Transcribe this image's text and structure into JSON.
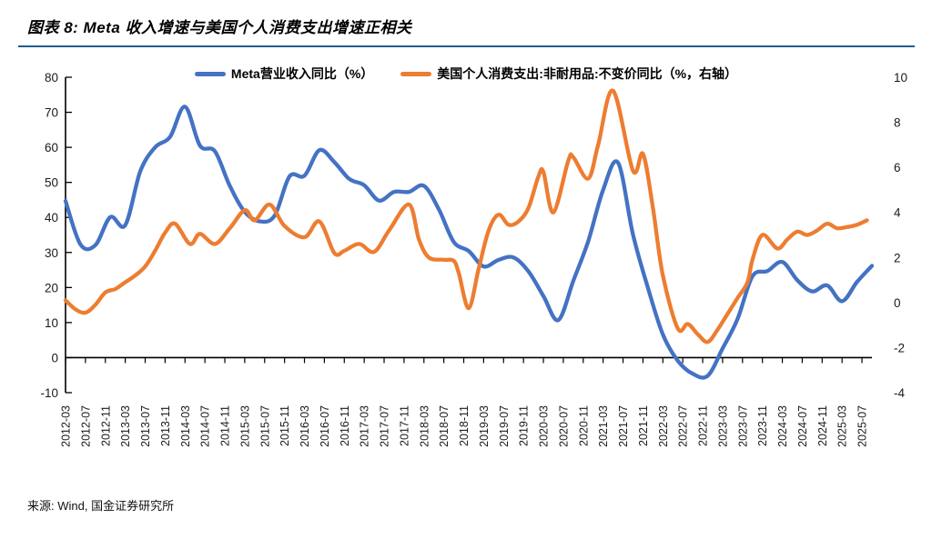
{
  "header": {
    "title": "图表 8: Meta 收入增速与美国个人消费支出增速正相关"
  },
  "footer": {
    "source": "来源: Wind, 国金证券研究所"
  },
  "chart_data": {
    "type": "line",
    "title": "图表 8: Meta 收入增速与美国个人消费支出增速正相关",
    "legend_position": "top",
    "grid": false,
    "x_start": "2012-03",
    "x_end": "2025-09",
    "x_tick_labels": [
      "2012-03",
      "2012-07",
      "2012-11",
      "2013-03",
      "2013-07",
      "2013-11",
      "2014-03",
      "2014-07",
      "2014-11",
      "2015-03",
      "2015-07",
      "2015-11",
      "2016-03",
      "2016-07",
      "2016-11",
      "2017-03",
      "2017-07",
      "2017-11",
      "2018-03",
      "2018-07",
      "2018-11",
      "2019-03",
      "2019-07",
      "2019-11",
      "2020-03",
      "2020-07",
      "2020-11",
      "2021-03",
      "2021-07",
      "2021-11",
      "2022-03",
      "2022-07",
      "2022-11",
      "2023-03",
      "2023-07",
      "2023-11",
      "2024-03",
      "2024-07",
      "2024-11",
      "2025-03",
      "2025-07"
    ],
    "axes": {
      "left": {
        "min": -10,
        "max": 80,
        "step": 10,
        "ticks": [
          80,
          70,
          60,
          50,
          40,
          30,
          20,
          10,
          0,
          -10
        ]
      },
      "right": {
        "min": -4,
        "max": 10,
        "step": 2,
        "ticks": [
          10,
          8,
          6,
          4,
          2,
          0,
          -2,
          -4
        ]
      }
    },
    "series": [
      {
        "name": "Meta营业收入同比（%）",
        "color": "#4472C4",
        "axis": "left",
        "points": [
          [
            "2012-03",
            44.7
          ],
          [
            "2012-06",
            32.3
          ],
          [
            "2012-09",
            32.1
          ],
          [
            "2012-12",
            40.1
          ],
          [
            "2013-03",
            37.8
          ],
          [
            "2013-06",
            53.1
          ],
          [
            "2013-09",
            60.0
          ],
          [
            "2013-12",
            63.0
          ],
          [
            "2014-03",
            71.6
          ],
          [
            "2014-06",
            60.5
          ],
          [
            "2014-09",
            58.9
          ],
          [
            "2014-12",
            49.0
          ],
          [
            "2015-03",
            41.6
          ],
          [
            "2015-06",
            38.9
          ],
          [
            "2015-09",
            40.5
          ],
          [
            "2015-12",
            51.7
          ],
          [
            "2016-03",
            51.9
          ],
          [
            "2016-06",
            59.2
          ],
          [
            "2016-09",
            55.8
          ],
          [
            "2016-12",
            51.0
          ],
          [
            "2017-03",
            49.2
          ],
          [
            "2017-06",
            44.8
          ],
          [
            "2017-09",
            47.3
          ],
          [
            "2017-12",
            47.3
          ],
          [
            "2018-03",
            49.0
          ],
          [
            "2018-06",
            42.3
          ],
          [
            "2018-09",
            33.0
          ],
          [
            "2018-12",
            30.4
          ],
          [
            "2019-03",
            26.0
          ],
          [
            "2019-06",
            27.9
          ],
          [
            "2019-09",
            28.6
          ],
          [
            "2019-12",
            24.6
          ],
          [
            "2020-03",
            17.6
          ],
          [
            "2020-06",
            10.7
          ],
          [
            "2020-09",
            21.9
          ],
          [
            "2020-12",
            33.2
          ],
          [
            "2021-03",
            47.9
          ],
          [
            "2021-06",
            55.6
          ],
          [
            "2021-09",
            35.1
          ],
          [
            "2021-12",
            19.9
          ],
          [
            "2022-03",
            6.6
          ],
          [
            "2022-06",
            -0.9
          ],
          [
            "2022-09",
            -4.6
          ],
          [
            "2022-12",
            -5.2
          ],
          [
            "2023-03",
            2.6
          ],
          [
            "2023-06",
            11.0
          ],
          [
            "2023-09",
            23.2
          ],
          [
            "2023-12",
            24.7
          ],
          [
            "2024-03",
            27.3
          ],
          [
            "2024-06",
            22.1
          ],
          [
            "2024-09",
            18.9
          ],
          [
            "2024-12",
            20.6
          ],
          [
            "2025-03",
            16.1
          ],
          [
            "2025-06",
            21.6
          ],
          [
            "2025-09",
            26.2
          ]
        ]
      },
      {
        "name": "美国个人消费支出:非耐用品:不变价同比（%，右轴）",
        "color": "#ED7D31",
        "axis": "right",
        "points": [
          [
            "2012-03",
            0.1
          ],
          [
            "2012-05",
            -0.3
          ],
          [
            "2012-07",
            -0.45
          ],
          [
            "2012-09",
            -0.1
          ],
          [
            "2012-11",
            0.45
          ],
          [
            "2013-01",
            0.6
          ],
          [
            "2013-03",
            0.9
          ],
          [
            "2013-05",
            1.2
          ],
          [
            "2013-07",
            1.6
          ],
          [
            "2013-09",
            2.3
          ],
          [
            "2013-11",
            3.1
          ],
          [
            "2014-01",
            3.5
          ],
          [
            "2014-04",
            2.6
          ],
          [
            "2014-06",
            3.05
          ],
          [
            "2014-09",
            2.6
          ],
          [
            "2014-12",
            3.3
          ],
          [
            "2015-03",
            4.1
          ],
          [
            "2015-05",
            3.65
          ],
          [
            "2015-08",
            4.35
          ],
          [
            "2015-11",
            3.4
          ],
          [
            "2016-03",
            2.9
          ],
          [
            "2016-06",
            3.6
          ],
          [
            "2016-09",
            2.2
          ],
          [
            "2016-11",
            2.3
          ],
          [
            "2017-02",
            2.6
          ],
          [
            "2017-05",
            2.25
          ],
          [
            "2017-08",
            3.2
          ],
          [
            "2017-12",
            4.35
          ],
          [
            "2018-02",
            2.8
          ],
          [
            "2018-04",
            2.0
          ],
          [
            "2018-07",
            1.9
          ],
          [
            "2018-09",
            1.85
          ],
          [
            "2018-10",
            1.3
          ],
          [
            "2018-12",
            -0.25
          ],
          [
            "2019-02",
            1.5
          ],
          [
            "2019-04",
            3.2
          ],
          [
            "2019-06",
            3.9
          ],
          [
            "2019-08",
            3.45
          ],
          [
            "2019-10",
            3.6
          ],
          [
            "2019-12",
            4.2
          ],
          [
            "2020-02",
            5.6
          ],
          [
            "2020-03",
            5.8
          ],
          [
            "2020-05",
            4.0
          ],
          [
            "2020-08",
            6.3
          ],
          [
            "2020-09",
            6.45
          ],
          [
            "2020-12",
            5.5
          ],
          [
            "2021-02",
            7.0
          ],
          [
            "2021-05",
            9.4
          ],
          [
            "2021-09",
            5.85
          ],
          [
            "2021-11",
            6.6
          ],
          [
            "2022-01",
            4.2
          ],
          [
            "2022-03",
            1.2
          ],
          [
            "2022-06",
            -1.15
          ],
          [
            "2022-08",
            -0.95
          ],
          [
            "2022-10",
            -1.4
          ],
          [
            "2022-12",
            -1.75
          ],
          [
            "2023-02",
            -1.2
          ],
          [
            "2023-04",
            -0.5
          ],
          [
            "2023-06",
            0.2
          ],
          [
            "2023-08",
            0.9
          ],
          [
            "2023-09",
            1.9
          ],
          [
            "2023-11",
            3.0
          ],
          [
            "2024-02",
            2.4
          ],
          [
            "2024-04",
            2.8
          ],
          [
            "2024-06",
            3.15
          ],
          [
            "2024-08",
            3.0
          ],
          [
            "2024-10",
            3.2
          ],
          [
            "2024-12",
            3.5
          ],
          [
            "2025-02",
            3.3
          ],
          [
            "2025-04",
            3.35
          ],
          [
            "2025-06",
            3.45
          ],
          [
            "2025-08",
            3.65
          ]
        ]
      }
    ]
  }
}
